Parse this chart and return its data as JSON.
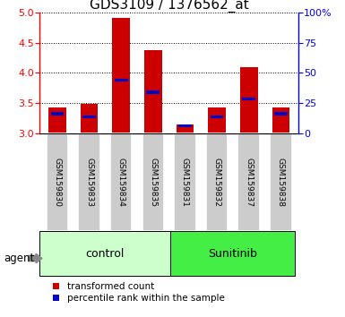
{
  "title": "GDS3109 / 1376562_at",
  "samples": [
    "GSM159830",
    "GSM159833",
    "GSM159834",
    "GSM159835",
    "GSM159831",
    "GSM159832",
    "GSM159837",
    "GSM159838"
  ],
  "transformed_counts": [
    3.42,
    3.48,
    4.92,
    4.38,
    3.15,
    3.42,
    4.1,
    3.42
  ],
  "percentile_ranks": [
    3.32,
    3.27,
    3.88,
    3.68,
    3.12,
    3.27,
    3.57,
    3.32
  ],
  "ylim": [
    3.0,
    5.0
  ],
  "yticks": [
    3.0,
    3.5,
    4.0,
    4.5,
    5.0
  ],
  "y2lim": [
    0,
    100
  ],
  "y2ticks": [
    0,
    25,
    50,
    75,
    100
  ],
  "bar_color": "#cc0000",
  "percentile_color": "#0000cc",
  "bar_width": 0.55,
  "control_color": "#ccffcc",
  "sunitinib_color": "#44ee44",
  "label_bg_color": "#cccccc",
  "title_fontsize": 11,
  "tick_fontsize": 8,
  "sample_fontsize": 6.5,
  "group_fontsize": 9,
  "legend_fontsize": 7.5
}
